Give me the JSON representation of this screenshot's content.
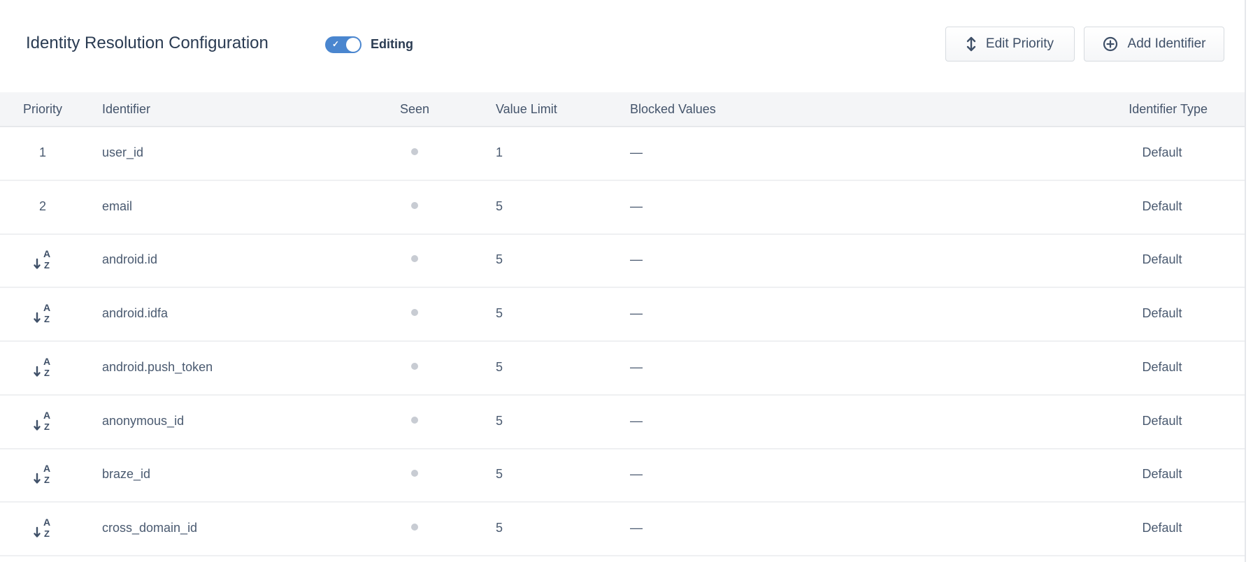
{
  "header": {
    "title": "Identity Resolution Configuration",
    "toggle": {
      "label": "Editing",
      "on": true,
      "color": "#4a86cf"
    },
    "buttons": [
      {
        "label": "Edit Priority",
        "icon": "up-down-arrow-icon"
      },
      {
        "label": "Add Identifier",
        "icon": "plus-circle-icon"
      }
    ]
  },
  "table": {
    "columns": [
      "Priority",
      "Identifier",
      "Seen",
      "Value Limit",
      "Blocked Values",
      "Identifier Type"
    ],
    "rows": [
      {
        "priority": "1",
        "identifier": "user_id",
        "value_limit": "1",
        "blocked": "—",
        "type": "Default"
      },
      {
        "priority": "2",
        "identifier": "email",
        "value_limit": "5",
        "blocked": "—",
        "type": "Default"
      },
      {
        "priority": null,
        "priority_icon": "sort-alpha-down-icon",
        "identifier": "android.id",
        "value_limit": "5",
        "blocked": "—",
        "type": "Default"
      },
      {
        "priority": null,
        "priority_icon": "sort-alpha-down-icon",
        "identifier": "android.idfa",
        "value_limit": "5",
        "blocked": "—",
        "type": "Default"
      },
      {
        "priority": null,
        "priority_icon": "sort-alpha-down-icon",
        "identifier": "android.push_token",
        "value_limit": "5",
        "blocked": "—",
        "type": "Default"
      },
      {
        "priority": null,
        "priority_icon": "sort-alpha-down-icon",
        "identifier": "anonymous_id",
        "value_limit": "5",
        "blocked": "—",
        "type": "Default"
      },
      {
        "priority": null,
        "priority_icon": "sort-alpha-down-icon",
        "identifier": "braze_id",
        "value_limit": "5",
        "blocked": "—",
        "type": "Default"
      },
      {
        "priority": null,
        "priority_icon": "sort-alpha-down-icon",
        "identifier": "cross_domain_id",
        "value_limit": "5",
        "blocked": "—",
        "type": "Default"
      }
    ]
  }
}
